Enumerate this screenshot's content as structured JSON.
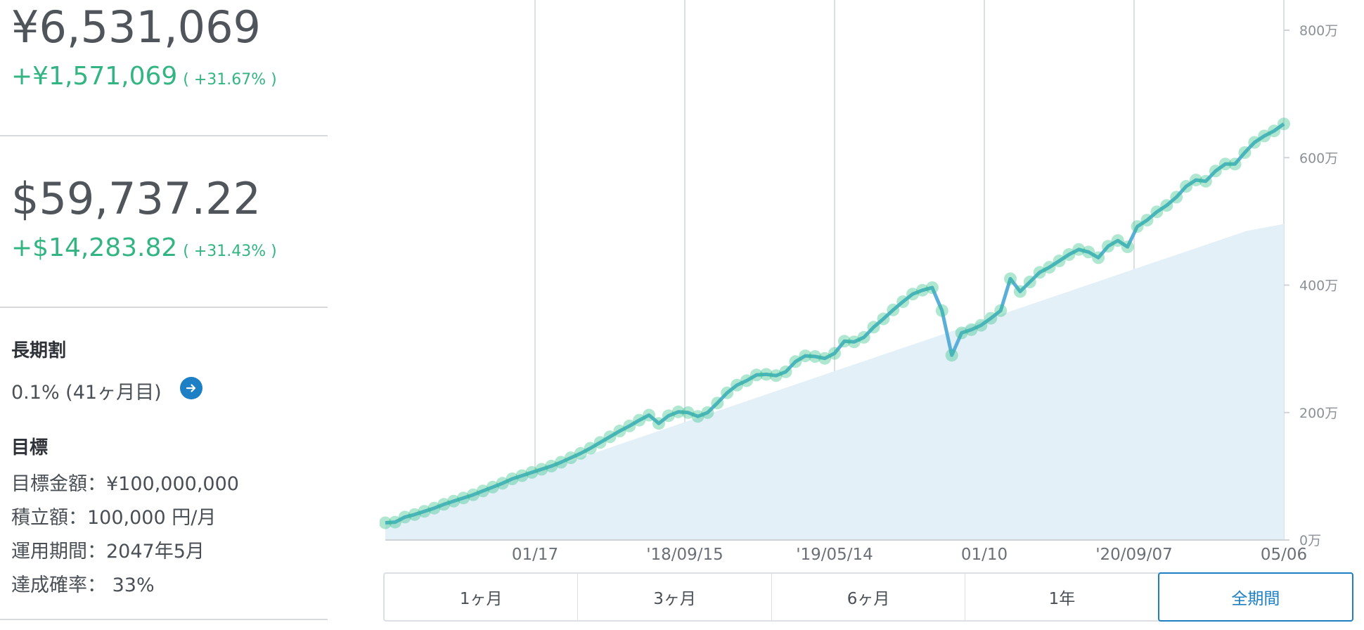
{
  "portfolio": {
    "jpy_total": "¥6,531,069",
    "jpy_gain": "+¥1,571,069",
    "jpy_gain_pct": "( +31.67% )",
    "usd_total": "$59,737.22",
    "usd_gain": "+$14,283.82",
    "usd_gain_pct": "( +31.43% )"
  },
  "long_term": {
    "heading": "長期割",
    "text": "0.1% (41ヶ月目)",
    "icon": "arrow-right-circle-icon"
  },
  "goal": {
    "heading": "目標",
    "target_amount": "目標金額：¥100,000,000",
    "monthly_contribution": "積立額：100,000 円/月",
    "period": "運用期間：2047年5月",
    "probability": "達成確率： 33%"
  },
  "colors": {
    "gain": "#33b583",
    "accent": "#1d7fc4",
    "line": "#5aafd9",
    "dots": "#2fbf86",
    "area": "#e4f0f8"
  },
  "chart_data": {
    "type": "line",
    "x_tick_labels": [
      "01/17",
      "'18/09/15",
      "'19/05/14",
      "01/10",
      "'20/09/07",
      "05/06"
    ],
    "y_tick_labels": [
      "0万",
      "200万",
      "400万",
      "600万",
      "800万"
    ],
    "ylim": [
      0,
      8500000
    ],
    "grid": "vertical",
    "series": [
      {
        "role": "valuation",
        "values": [
          270000,
          280000,
          360000,
          400000,
          450000,
          500000,
          560000,
          610000,
          660000,
          710000,
          770000,
          830000,
          890000,
          960000,
          1010000,
          1060000,
          1110000,
          1160000,
          1220000,
          1290000,
          1360000,
          1440000,
          1530000,
          1620000,
          1710000,
          1790000,
          1880000,
          1960000,
          1830000,
          1950000,
          2010000,
          2000000,
          1940000,
          2000000,
          2150000,
          2310000,
          2430000,
          2500000,
          2590000,
          2600000,
          2580000,
          2640000,
          2800000,
          2890000,
          2880000,
          2850000,
          2930000,
          3120000,
          3110000,
          3180000,
          3340000,
          3470000,
          3610000,
          3740000,
          3860000,
          3920000,
          3960000,
          3600000,
          2900000,
          3250000,
          3300000,
          3370000,
          3480000,
          3600000,
          4100000,
          3900000,
          4050000,
          4200000,
          4280000,
          4380000,
          4480000,
          4560000,
          4520000,
          4430000,
          4610000,
          4700000,
          4600000,
          4920000,
          5020000,
          5150000,
          5250000,
          5380000,
          5550000,
          5650000,
          5630000,
          5790000,
          5900000,
          5900000,
          6080000,
          6240000,
          6340000,
          6420000,
          6530000
        ]
      },
      {
        "role": "principal",
        "values": [
          250000,
          450000,
          650000,
          850000,
          1050000,
          1250000,
          1450000,
          1650000,
          1850000,
          2050000,
          2250000,
          2450000,
          2650000,
          2850000,
          3050000,
          3250000,
          3450000,
          3650000,
          3850000,
          4050000,
          4250000,
          4450000,
          4650000,
          4850000,
          4960000
        ]
      }
    ]
  },
  "tabs": [
    "1ヶ月",
    "3ヶ月",
    "6ヶ月",
    "1年",
    "全期間"
  ],
  "active_tab": "全期間"
}
